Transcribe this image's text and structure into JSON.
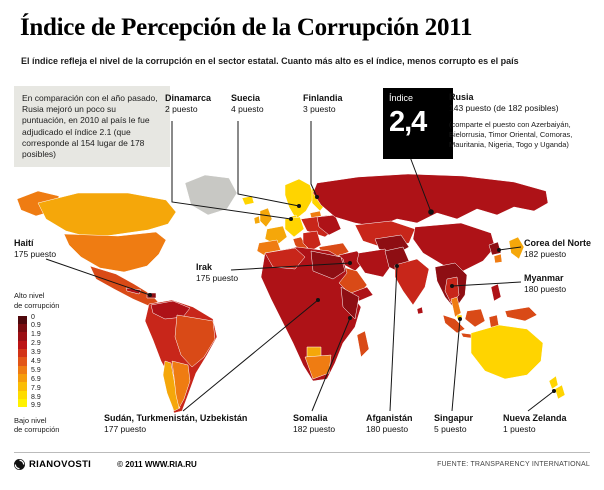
{
  "header": {
    "title": "Índice de Percepción de la Corrupción 2011",
    "subtitle": "El índice refleja el nivel de la corrupción en el sector estatal. Cuanto más alto es el índice, menos corrupto es el país"
  },
  "intro": {
    "text": "En comparación con el año pasado, Rusia mejoró un poco su puntuación, en 2010 al país le fue adjudicado el índice 2.1 (que corresponde al 154 lugar de 178 posibles)"
  },
  "index_badge": {
    "label": "Índice",
    "value": "2,4"
  },
  "russia": {
    "name": "Rusia",
    "rank": "143 puesto (de 182 posibles)",
    "note": "(comparte el puesto con Azerbaiyán, Bielorrusia, Timor Oriental, Comoras, Mauritania, Nigeria, Togo y Uganda)"
  },
  "callouts": {
    "dinamarca": {
      "name": "Dinamarca",
      "rank": "2 puesto"
    },
    "suecia": {
      "name": "Suecia",
      "rank": "4 puesto"
    },
    "finlandia": {
      "name": "Finlandia",
      "rank": "3 puesto"
    },
    "haiti": {
      "name": "Haití",
      "rank": "175 puesto"
    },
    "irak": {
      "name": "Irak",
      "rank": "175 puesto"
    },
    "corea_del_norte": {
      "name": "Corea del Norte",
      "rank": "182 puesto"
    },
    "myanmar": {
      "name": "Myanmar",
      "rank": "180 puesto"
    },
    "sudan_turkmenistan_uzbekistan": {
      "name": "Sudán, Turkmenistán, Uzbekistán",
      "rank": "177 puesto"
    },
    "somalia": {
      "name": "Somalia",
      "rank": "182 puesto"
    },
    "afganistan": {
      "name": "Afganistán",
      "rank": "180 puesto"
    },
    "singapur": {
      "name": "Singapur",
      "rank": "5 puesto"
    },
    "nueva_zelanda": {
      "name": "Nueva Zelanda",
      "rank": "1 puesto"
    }
  },
  "legend": {
    "high_label_line1": "Alto nivel",
    "high_label_line2": "de corrupción",
    "low_label_line1": "Bajo nivel",
    "low_label_line2": "de corrupción",
    "ticks": [
      "0",
      "0.9",
      "1.9",
      "2.9",
      "3.9",
      "4.9",
      "5.9",
      "6.9",
      "7.9",
      "8.9",
      "9.9"
    ],
    "colors": [
      "#4f080c",
      "#7a0c10",
      "#9c0f14",
      "#bc1415",
      "#d23317",
      "#e25617",
      "#ef7c12",
      "#f69c0b",
      "#fbbd05",
      "#fedc00",
      "#fff200"
    ]
  },
  "map": {
    "palette": {
      "darkest": "#8e0e13",
      "dark": "#ae1217",
      "red": "#c8261a",
      "red_orange": "#d94a17",
      "orange": "#ef7c12",
      "yellow_orange": "#f5a70a",
      "yellow": "#ffd400",
      "no_data": "#c8c8c4"
    }
  },
  "footer": {
    "brand": "RIANOVOSTI",
    "copyright": "© 2011 WWW.RIA.RU",
    "source": "FUENTE: TRANSPARENCY INTERNATIONAL"
  }
}
